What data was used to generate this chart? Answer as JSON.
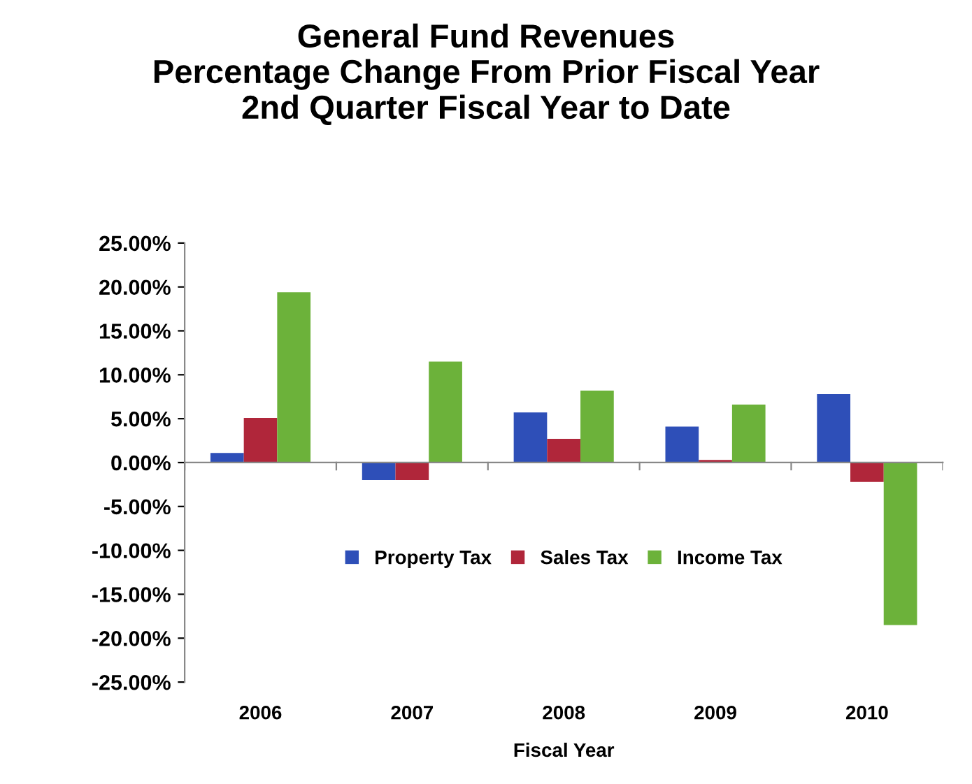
{
  "chart_data": {
    "type": "bar",
    "title": "General Fund Revenues\nPercentage Change From Prior Fiscal Year\n2nd Quarter Fiscal Year to Date",
    "xlabel": "Fiscal Year",
    "categories": [
      "2006",
      "2007",
      "2008",
      "2009",
      "2010"
    ],
    "series": [
      {
        "name": "Property Tax",
        "color": "#2e4fb8",
        "values": [
          1.1,
          -2.0,
          5.7,
          4.1,
          7.8
        ]
      },
      {
        "name": "Sales Tax",
        "color": "#b0263a",
        "values": [
          5.1,
          -2.0,
          2.7,
          0.3,
          -2.2
        ]
      },
      {
        "name": "Income Tax",
        "color": "#6cb23a",
        "values": [
          19.4,
          11.5,
          8.2,
          6.6,
          -18.5
        ]
      }
    ],
    "ylim": [
      -25,
      25
    ],
    "yticks": [
      {
        "value": -25,
        "label": "-25.00%"
      },
      {
        "value": -20,
        "label": "-20.00%"
      },
      {
        "value": -15,
        "label": "-15.00%"
      },
      {
        "value": -10,
        "label": "-10.00%"
      },
      {
        "value": -5,
        "label": "-5.00%"
      },
      {
        "value": 0,
        "label": "0.00%"
      },
      {
        "value": 5,
        "label": "5.00%"
      },
      {
        "value": 10,
        "label": "10.00%"
      },
      {
        "value": 15,
        "label": "15.00%"
      },
      {
        "value": 20,
        "label": "20.00%"
      },
      {
        "value": 25,
        "label": "25.00%"
      }
    ],
    "legend": "bottom"
  }
}
